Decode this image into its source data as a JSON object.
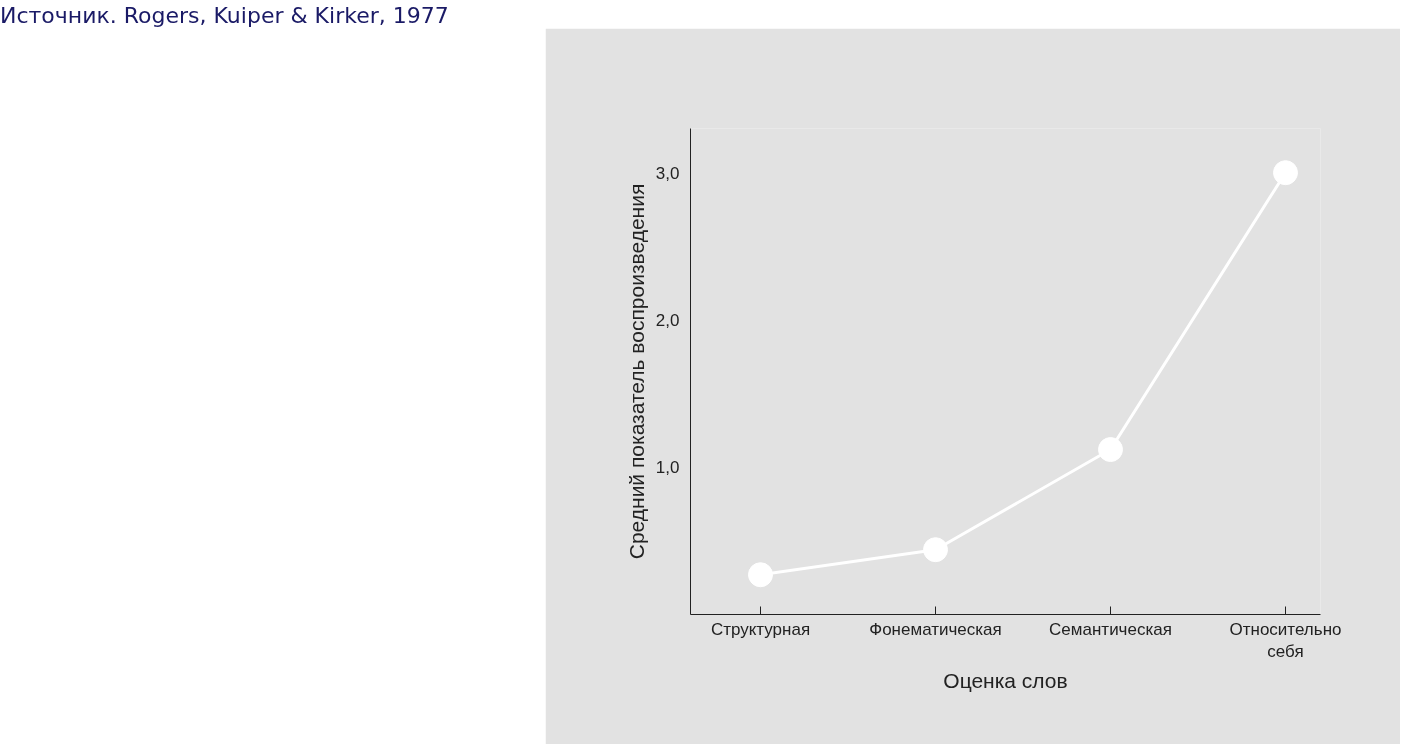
{
  "chart_data": {
    "type": "line",
    "xlabel": "Оценка слов",
    "ylabel": "Средний показатель воспроизведения",
    "categories": [
      "Структурная",
      "Фонематическая",
      "Семантическая",
      "Относительно себя"
    ],
    "series": [
      {
        "color": "#ffffff",
        "values": [
          0.27,
          0.44,
          1.12,
          3.0
        ]
      }
    ],
    "ylim": [
      0,
      3.3
    ],
    "yticks": [
      {
        "value": 1,
        "label": "1,0"
      },
      {
        "value": 2,
        "label": "2,0"
      },
      {
        "value": 3,
        "label": "3,0"
      }
    ],
    "marker": "circle",
    "line_style": "solid",
    "annotations": [
      "Источник. Rogers, Kuiper & Kirker, 1977"
    ]
  }
}
